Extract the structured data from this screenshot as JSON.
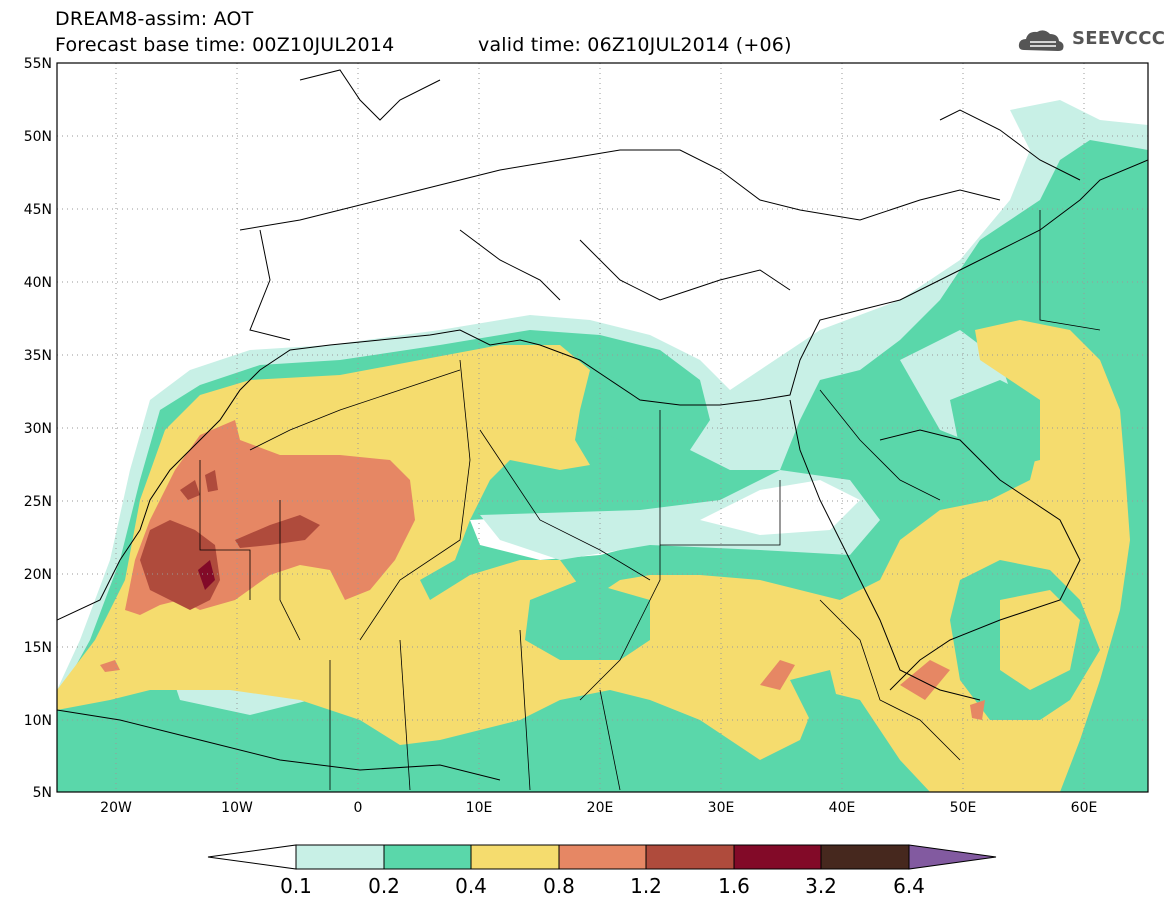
{
  "header": {
    "line1": "DREAM8-assim: AOT",
    "line2": "Forecast base time: 00Z10JUL2014",
    "line3": "valid time: 06Z10JUL2014 (+06)"
  },
  "logo": {
    "text": "SEEVCCC",
    "icon": "cloud-icon",
    "color": "#555555"
  },
  "map": {
    "lat_labels": [
      "55N",
      "50N",
      "45N",
      "40N",
      "35N",
      "30N",
      "25N",
      "20N",
      "15N",
      "10N",
      "5N"
    ],
    "lon_labels": [
      "20W",
      "10W",
      "0",
      "10E",
      "20E",
      "30E",
      "40E",
      "50E",
      "60E"
    ],
    "grid": "dotted"
  },
  "colorbar": {
    "labels": [
      "0.1",
      "0.2",
      "0.4",
      "0.8",
      "1.2",
      "1.6",
      "3.2",
      "6.4"
    ],
    "colors": [
      "#c8f0e6",
      "#5ad7aa",
      "#f5dc6e",
      "#e68764",
      "#af4b3c",
      "#820a28",
      "#46281e",
      "#825aa0"
    ]
  }
}
